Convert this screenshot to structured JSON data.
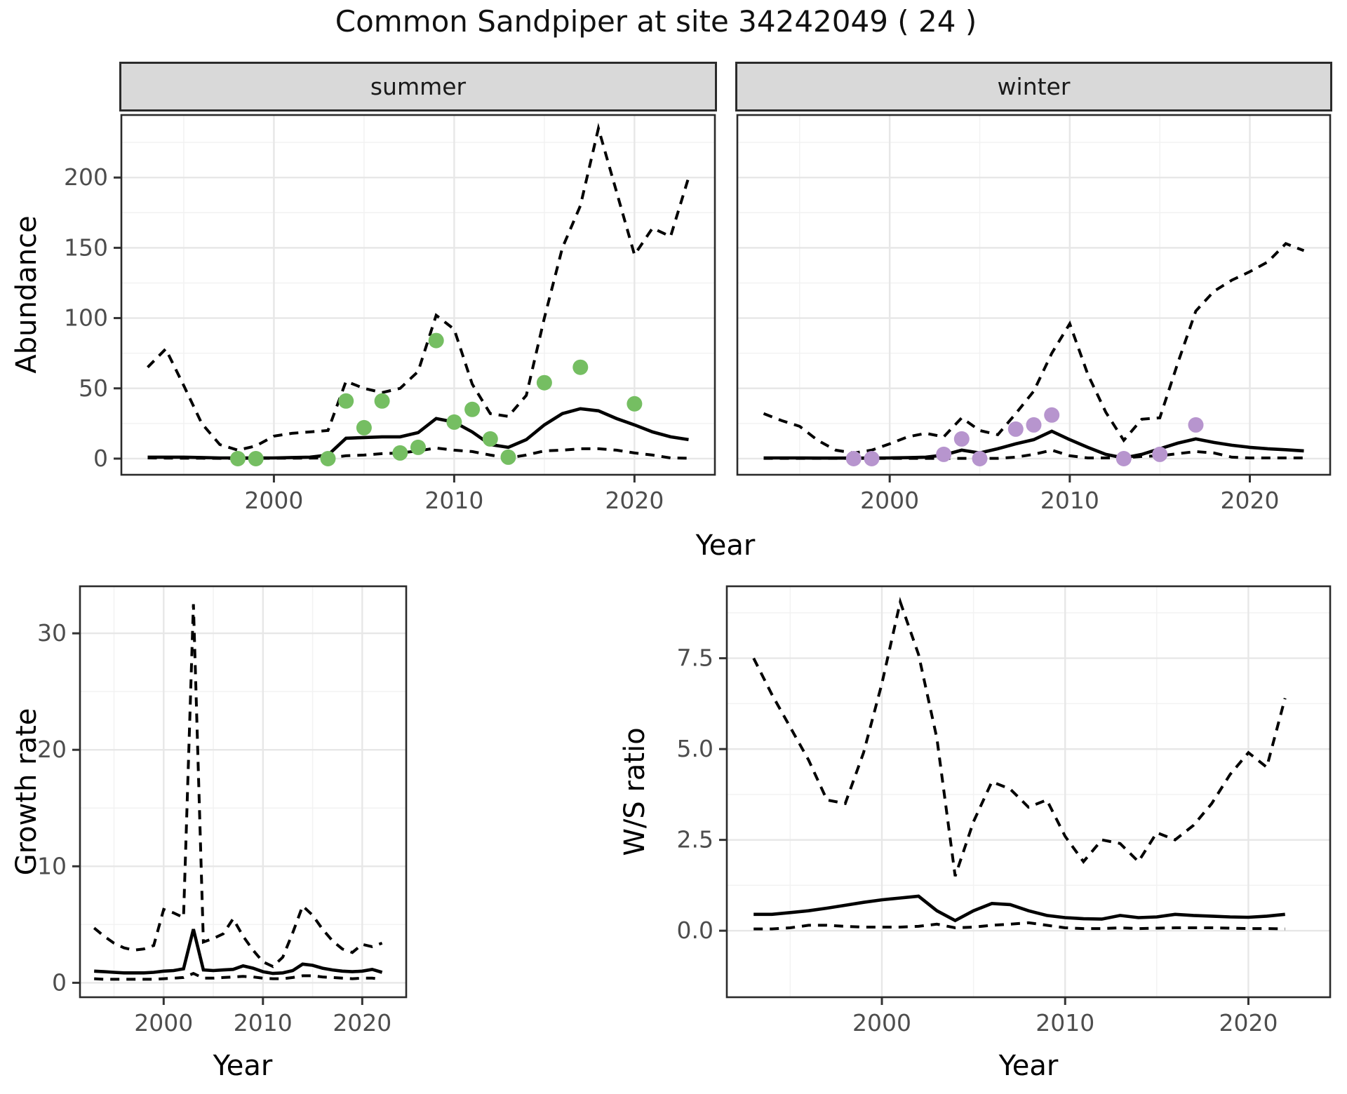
{
  "title": {
    "text": "Common Sandpiper at site 34242049 ( 24 )"
  },
  "facets": {
    "summer_label": "summer",
    "winter_label": "winter"
  },
  "axes": {
    "abundance_title": "Abundance",
    "growth_title": "Growth rate",
    "ws_title": "W/S ratio",
    "year_title": "Year",
    "year_ticks": [
      2000,
      2010,
      2020
    ],
    "year_tick_labels": [
      "2000",
      "2010",
      "2020"
    ],
    "year_minor": [
      1995,
      2005,
      2015
    ]
  },
  "colors": {
    "summer_points": "#75BE62",
    "winter_points": "#B795CE",
    "mean_line": "#000000",
    "ci_line": "#000000",
    "strip_bg": "#d9d9d9",
    "panel_border": "#2b2b2b",
    "grid_major": "#e7e7e7",
    "grid_minor": "#f2f2f2",
    "axis_text": "#4d4d4d",
    "tick_mark": "#333333"
  },
  "chart_data": [
    {
      "id": "abundance_summer",
      "type": "line",
      "facet": "summer",
      "xlabel": "Year",
      "ylabel": "Abundance",
      "xlim": [
        1991.5,
        2024.5
      ],
      "ylim": [
        -12,
        245
      ],
      "yticks": [
        0,
        50,
        100,
        150,
        200
      ],
      "ytick_labels": [
        "0",
        "50",
        "100",
        "150",
        "200"
      ],
      "yminor": [
        25,
        75,
        125,
        175,
        225
      ],
      "x": [
        1993,
        1994,
        1995,
        1996,
        1997,
        1998,
        1999,
        2000,
        2001,
        2002,
        2003,
        2004,
        2005,
        2006,
        2007,
        2008,
        2009,
        2010,
        2011,
        2012,
        2013,
        2014,
        2015,
        2016,
        2017,
        2018,
        2019,
        2020,
        2021,
        2022,
        2023
      ],
      "series": [
        {
          "name": "mean",
          "style": "solid",
          "values": [
            1,
            1,
            1,
            0.8,
            0.5,
            0.5,
            0.5,
            0.5,
            0.8,
            1,
            2.5,
            14.5,
            15,
            15.5,
            15.5,
            18.5,
            28.5,
            26,
            19,
            10,
            8,
            13.5,
            24,
            32,
            35.5,
            34,
            28.5,
            24,
            19,
            15.5,
            13.5
          ]
        },
        {
          "name": "upper_ci",
          "style": "dashed",
          "values": [
            65,
            78,
            52,
            25,
            10,
            6,
            9,
            16,
            18,
            19,
            20,
            55,
            50,
            47,
            50,
            62,
            102,
            92,
            53,
            32,
            30,
            45,
            100,
            150,
            180,
            235,
            190,
            145,
            164,
            158,
            200
          ]
        },
        {
          "name": "lower_ci",
          "style": "dashed",
          "values": [
            0.5,
            0.4,
            0.3,
            0.3,
            0.2,
            0.2,
            0.2,
            0.3,
            0.3,
            0.4,
            0.5,
            2,
            2.5,
            3.5,
            4,
            5.5,
            7.5,
            6,
            5,
            2.5,
            0.5,
            2.5,
            5.5,
            6,
            7,
            7,
            6,
            4,
            2.5,
            0.5,
            0.3
          ]
        }
      ],
      "points": [
        [
          1998,
          0
        ],
        [
          1999,
          0
        ],
        [
          2003,
          0
        ],
        [
          2004,
          41
        ],
        [
          2005,
          22
        ],
        [
          2006,
          41
        ],
        [
          2007,
          4
        ],
        [
          2008,
          8
        ],
        [
          2009,
          84
        ],
        [
          2010,
          26
        ],
        [
          2011,
          35
        ],
        [
          2012,
          14
        ],
        [
          2013,
          1
        ],
        [
          2015,
          54
        ],
        [
          2017,
          65
        ],
        [
          2020,
          39
        ]
      ],
      "point_color": "summer_points"
    },
    {
      "id": "abundance_winter",
      "type": "line",
      "facet": "winter",
      "xlabel": "Year",
      "ylabel": "Abundance",
      "xlim": [
        1991.5,
        2024.5
      ],
      "ylim": [
        -12,
        245
      ],
      "yticks": [
        0,
        50,
        100,
        150,
        200
      ],
      "ytick_labels": [
        "0",
        "50",
        "100",
        "150",
        "200"
      ],
      "yminor": [
        25,
        75,
        125,
        175,
        225
      ],
      "x": [
        1993,
        1994,
        1995,
        1996,
        1997,
        1998,
        1999,
        2000,
        2001,
        2002,
        2003,
        2004,
        2005,
        2006,
        2007,
        2008,
        2009,
        2010,
        2011,
        2012,
        2013,
        2014,
        2015,
        2016,
        2017,
        2018,
        2019,
        2020,
        2021,
        2022,
        2023
      ],
      "series": [
        {
          "name": "mean",
          "style": "solid",
          "values": [
            0.5,
            0.5,
            0.5,
            0.4,
            0.4,
            0.4,
            0.4,
            0.5,
            0.7,
            1,
            2.5,
            6,
            4,
            7,
            10.5,
            13.5,
            19.5,
            13.5,
            8,
            3,
            0.5,
            3,
            7,
            11,
            14,
            11.5,
            9.5,
            8,
            7,
            6.3,
            5.5
          ]
        },
        {
          "name": "upper_ci",
          "style": "dashed",
          "values": [
            32,
            27,
            23,
            13,
            6,
            4,
            6,
            10.5,
            15.5,
            18,
            15.5,
            29,
            20,
            17,
            32,
            48,
            75,
            96,
            60,
            33,
            13,
            28,
            29,
            68,
            105,
            119,
            127,
            133,
            140,
            153,
            148
          ]
        },
        {
          "name": "lower_ci",
          "style": "dashed",
          "values": [
            0.2,
            0.2,
            0.2,
            0.2,
            0.2,
            0.2,
            0.2,
            0.2,
            0.2,
            0.2,
            0.2,
            0.2,
            0.2,
            0.2,
            1,
            3,
            6,
            2,
            0.5,
            0.5,
            0.5,
            1.5,
            2,
            3.5,
            5,
            4,
            1,
            0.5,
            0.5,
            0.5,
            0.5
          ]
        }
      ],
      "points": [
        [
          1998,
          0
        ],
        [
          1999,
          0
        ],
        [
          2003,
          3
        ],
        [
          2004,
          14
        ],
        [
          2005,
          0
        ],
        [
          2007,
          21
        ],
        [
          2008,
          24
        ],
        [
          2009,
          31
        ],
        [
          2013,
          0
        ],
        [
          2015,
          3
        ],
        [
          2017,
          24
        ]
      ],
      "point_color": "winter_points"
    },
    {
      "id": "growth_rate",
      "type": "line",
      "xlabel": "Year",
      "ylabel": "Growth rate",
      "xlim": [
        1991.5,
        2024.5
      ],
      "ylim": [
        -1.3,
        34.1
      ],
      "yticks": [
        0,
        10,
        20,
        30
      ],
      "ytick_labels": [
        "0",
        "10",
        "20",
        "30"
      ],
      "yminor": [
        5,
        15,
        25
      ],
      "x": [
        1993,
        1994,
        1995,
        1996,
        1997,
        1998,
        1999,
        2000,
        2001,
        2002,
        2003,
        2004,
        2005,
        2006,
        2007,
        2008,
        2009,
        2010,
        2011,
        2012,
        2013,
        2014,
        2015,
        2016,
        2017,
        2018,
        2019,
        2020,
        2021,
        2022
      ],
      "series": [
        {
          "name": "mean",
          "style": "solid",
          "values": [
            1.0,
            0.95,
            0.9,
            0.85,
            0.85,
            0.85,
            0.9,
            1.0,
            1.05,
            1.2,
            4.6,
            1.1,
            1.05,
            1.1,
            1.15,
            1.45,
            1.25,
            0.95,
            0.8,
            0.85,
            1.05,
            1.6,
            1.5,
            1.25,
            1.1,
            1.0,
            0.95,
            1.0,
            1.15,
            0.9
          ]
        },
        {
          "name": "upper_ci",
          "style": "dashed",
          "values": [
            4.7,
            4.0,
            3.4,
            3.0,
            2.8,
            2.9,
            3.2,
            6.3,
            6.0,
            5.6,
            32.5,
            3.5,
            3.8,
            4.2,
            5.5,
            4.0,
            2.8,
            1.8,
            1.4,
            2.2,
            4.3,
            6.6,
            5.8,
            4.6,
            3.6,
            2.9,
            2.6,
            3.3,
            3.1,
            3.4
          ]
        },
        {
          "name": "lower_ci",
          "style": "dashed",
          "values": [
            0.35,
            0.3,
            0.3,
            0.3,
            0.3,
            0.3,
            0.3,
            0.35,
            0.4,
            0.45,
            0.8,
            0.4,
            0.4,
            0.45,
            0.5,
            0.55,
            0.5,
            0.4,
            0.35,
            0.35,
            0.45,
            0.6,
            0.6,
            0.5,
            0.45,
            0.4,
            0.35,
            0.4,
            0.4,
            0.3
          ]
        }
      ],
      "points": [],
      "point_color": "mean_line"
    },
    {
      "id": "ws_ratio",
      "type": "line",
      "xlabel": "Year",
      "ylabel": "W/S ratio",
      "xlim": [
        1991.5,
        2024.5
      ],
      "ylim": [
        -1.85,
        9.5
      ],
      "yticks": [
        0,
        2.5,
        5,
        7.5
      ],
      "ytick_labels": [
        "0.0",
        "2.5",
        "5.0",
        "7.5"
      ],
      "yminor": [
        1.25,
        3.75,
        6.25,
        8.75
      ],
      "x": [
        1993,
        1994,
        1995,
        1996,
        1997,
        1998,
        1999,
        2000,
        2001,
        2002,
        2003,
        2004,
        2005,
        2006,
        2007,
        2008,
        2009,
        2010,
        2011,
        2012,
        2013,
        2014,
        2015,
        2016,
        2017,
        2018,
        2019,
        2020,
        2021,
        2022
      ],
      "series": [
        {
          "name": "mean",
          "style": "solid",
          "values": [
            0.45,
            0.45,
            0.5,
            0.55,
            0.62,
            0.7,
            0.78,
            0.85,
            0.9,
            0.95,
            0.55,
            0.28,
            0.55,
            0.75,
            0.72,
            0.55,
            0.42,
            0.36,
            0.33,
            0.32,
            0.42,
            0.36,
            0.38,
            0.45,
            0.42,
            0.4,
            0.38,
            0.37,
            0.4,
            0.45
          ]
        },
        {
          "name": "upper_ci",
          "style": "dashed",
          "values": [
            7.5,
            6.5,
            5.6,
            4.7,
            3.6,
            3.5,
            4.9,
            6.8,
            9.05,
            7.6,
            5.3,
            1.5,
            3.0,
            4.1,
            3.9,
            3.4,
            3.6,
            2.6,
            1.9,
            2.5,
            2.4,
            1.9,
            2.7,
            2.5,
            2.9,
            3.5,
            4.3,
            4.9,
            4.5,
            6.4
          ]
        },
        {
          "name": "lower_ci",
          "style": "dashed",
          "values": [
            0.05,
            0.05,
            0.08,
            0.15,
            0.15,
            0.12,
            0.1,
            0.1,
            0.1,
            0.12,
            0.18,
            0.08,
            0.1,
            0.15,
            0.18,
            0.22,
            0.15,
            0.08,
            0.06,
            0.06,
            0.08,
            0.06,
            0.07,
            0.08,
            0.08,
            0.08,
            0.07,
            0.06,
            0.06,
            0.05
          ]
        }
      ],
      "points": [],
      "point_color": "mean_line"
    }
  ]
}
